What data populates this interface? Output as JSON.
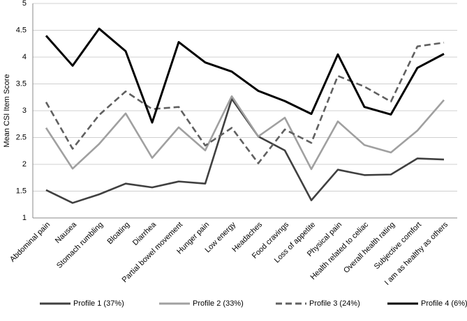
{
  "chart_data": {
    "type": "line",
    "y_label": "Mean CSI Item Score",
    "categories": [
      "Abdominal pain",
      "Nausea",
      "Stomach rumbling",
      "Bloating",
      "Diarrhea",
      "Partial bowel movement",
      "Hunger pain",
      "Low energy",
      "Headaches",
      "Food cravings",
      "Loss of appetite",
      "Physical pain",
      "Health related to celiac",
      "Overall health rating",
      "Subjective comfort",
      "I am as healthy as others"
    ],
    "series": [
      {
        "name": "Profile 1 (37%)",
        "color": "#404040",
        "dashed": false,
        "values": [
          1.52,
          1.28,
          1.44,
          1.64,
          1.57,
          1.68,
          1.64,
          3.22,
          2.52,
          2.26,
          1.33,
          1.9,
          1.8,
          1.81,
          2.11,
          2.09
        ]
      },
      {
        "name": "Profile 2 (33%)",
        "color": "#a0a0a0",
        "dashed": false,
        "values": [
          2.68,
          1.92,
          2.38,
          2.95,
          2.12,
          2.69,
          2.26,
          3.27,
          2.52,
          2.87,
          1.91,
          2.8,
          2.36,
          2.22,
          2.63,
          3.2
        ]
      },
      {
        "name": "Profile 3 (24%)",
        "color": "#606060",
        "dashed": true,
        "values": [
          3.16,
          2.29,
          2.92,
          3.36,
          3.03,
          3.07,
          2.35,
          2.68,
          2.02,
          2.65,
          2.4,
          3.65,
          3.45,
          3.17,
          4.2,
          4.27
        ]
      },
      {
        "name": "Profile 4 (6%)",
        "color": "#000000",
        "dashed": false,
        "values": [
          4.4,
          3.84,
          4.53,
          4.11,
          2.78,
          4.28,
          3.9,
          3.73,
          3.37,
          3.18,
          2.94,
          4.05,
          3.07,
          2.93,
          3.8,
          4.06
        ]
      }
    ],
    "ylim": [
      1,
      5
    ],
    "yticks": [
      1,
      1.5,
      2,
      2.5,
      3,
      3.5,
      4,
      4.5,
      5
    ],
    "grid": true,
    "legend": "bottom"
  }
}
